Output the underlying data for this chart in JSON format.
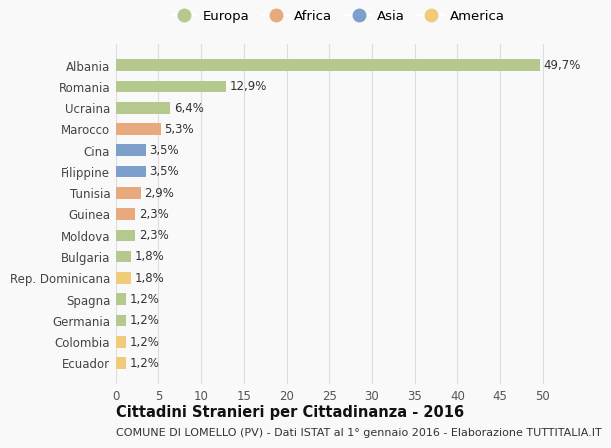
{
  "countries": [
    "Albania",
    "Romania",
    "Ucraina",
    "Marocco",
    "Cina",
    "Filippine",
    "Tunisia",
    "Guinea",
    "Moldova",
    "Bulgaria",
    "Rep. Dominicana",
    "Spagna",
    "Germania",
    "Colombia",
    "Ecuador"
  ],
  "values": [
    49.7,
    12.9,
    6.4,
    5.3,
    3.5,
    3.5,
    2.9,
    2.3,
    2.3,
    1.8,
    1.8,
    1.2,
    1.2,
    1.2,
    1.2
  ],
  "labels": [
    "49,7%",
    "12,9%",
    "6,4%",
    "5,3%",
    "3,5%",
    "3,5%",
    "2,9%",
    "2,3%",
    "2,3%",
    "1,8%",
    "1,8%",
    "1,2%",
    "1,2%",
    "1,2%",
    "1,2%"
  ],
  "continents": [
    "Europa",
    "Europa",
    "Europa",
    "Africa",
    "Asia",
    "Asia",
    "Africa",
    "Africa",
    "Europa",
    "Europa",
    "America",
    "Europa",
    "Europa",
    "America",
    "America"
  ],
  "continent_colors": {
    "Europa": "#b5c98e",
    "Africa": "#e8a97e",
    "Asia": "#7c9fcc",
    "America": "#f0cc7a"
  },
  "legend_order": [
    "Europa",
    "Africa",
    "Asia",
    "America"
  ],
  "xlim": [
    0,
    52
  ],
  "xticks": [
    0,
    5,
    10,
    15,
    20,
    25,
    30,
    35,
    40,
    45,
    50
  ],
  "title": "Cittadini Stranieri per Cittadinanza - 2016",
  "subtitle": "COMUNE DI LOMELLO (PV) - Dati ISTAT al 1° gennaio 2016 - Elaborazione TUTTITALIA.IT",
  "bg_color": "#f9f9f9",
  "grid_color": "#dddddd",
  "bar_height": 0.55,
  "label_fontsize": 8.5,
  "tick_fontsize": 8.5,
  "title_fontsize": 10.5,
  "subtitle_fontsize": 8.0
}
